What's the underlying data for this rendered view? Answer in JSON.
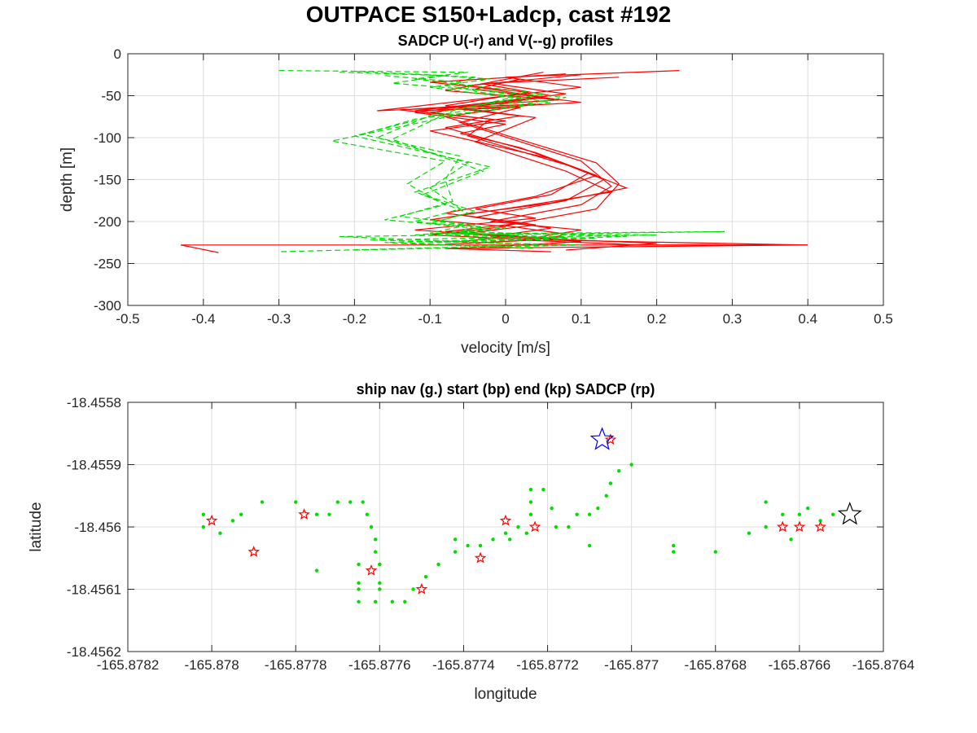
{
  "figure": {
    "title": "OUTPACE S150+Ladcp, cast #192"
  },
  "chart_data": [
    {
      "type": "line",
      "title": "SADCP U(-r) and V(--g) profiles",
      "xlabel": "velocity [m/s]",
      "ylabel": "depth [m]",
      "xlim": [
        -0.5,
        0.5
      ],
      "ylim": [
        -300,
        0
      ],
      "xticks": [
        -0.5,
        -0.4,
        -0.3,
        -0.2,
        -0.1,
        0,
        0.1,
        0.2,
        0.3,
        0.4,
        0.5
      ],
      "xtick_labels": [
        "-0.5",
        "-0.4",
        "-0.3",
        "-0.2",
        "-0.1",
        "0",
        "0.1",
        "0.2",
        "0.3",
        "0.4",
        "0.5"
      ],
      "yticks": [
        0,
        -50,
        -100,
        -150,
        -200,
        -250,
        -300
      ],
      "ytick_labels": [
        "0",
        "-50",
        "-100",
        "-150",
        "-200",
        "-250",
        "-300"
      ],
      "grid": true,
      "series": [
        {
          "color": "#ff0000",
          "linestyle": "solid",
          "profiles": [
            {
              "x": [
                0.23,
                0.0,
                0.1,
                -0.17,
                0.04,
                -0.08,
                0.12,
                0.15,
                0.12,
                0.0,
                0.08,
                0.05,
                0.4,
                -0.43,
                -0.38
              ],
              "y": [
                -20,
                -28,
                -40,
                -68,
                -60,
                -75,
                -130,
                -155,
                -185,
                -205,
                -215,
                -222,
                -228,
                -228,
                -237
              ]
            },
            {
              "x": [
                0.15,
                -0.02,
                0.08,
                -0.12,
                0.02,
                -0.06,
                0.1,
                0.14,
                0.1,
                -0.02,
                0.1,
                0.02,
                0.18,
                0.4,
                -0.08,
                0.06
              ],
              "y": [
                -28,
                -35,
                -48,
                -68,
                -64,
                -82,
                -128,
                -158,
                -180,
                -200,
                -210,
                -222,
                -228,
                -228,
                -232,
                -236
              ]
            },
            {
              "x": [
                0.1,
                -0.05,
                0.05,
                -0.1,
                0.0,
                -0.1,
                0.06,
                0.13,
                0.08,
                -0.04,
                0.06,
                -0.02,
                0.2,
                0.08
              ],
              "y": [
                -25,
                -38,
                -52,
                -70,
                -80,
                -92,
                -125,
                -150,
                -175,
                -195,
                -208,
                -218,
                -226,
                -234
              ]
            },
            {
              "x": [
                0.05,
                -0.08,
                0.07,
                -0.14,
                -0.02,
                -0.05,
                0.09,
                0.16,
                0.06,
                -0.06,
                0.04,
                -0.05,
                0.1,
                -0.02
              ],
              "y": [
                -22,
                -44,
                -55,
                -67,
                -78,
                -98,
                -135,
                -160,
                -178,
                -192,
                -204,
                -214,
                -224,
                -230
              ]
            },
            {
              "x": [
                0.08,
                -0.1,
                0.03,
                -0.08,
                0.02,
                -0.08,
                0.04,
                0.12,
                0.04,
                -0.08,
                0.02,
                -0.08,
                0.06,
                -0.04
              ],
              "y": [
                -24,
                -34,
                -46,
                -62,
                -74,
                -88,
                -118,
                -145,
                -170,
                -190,
                -202,
                -212,
                -220,
                -226
              ]
            },
            {
              "x": [
                0.02,
                -0.04,
                0.1,
                -0.06,
                0.04,
                -0.04,
                0.08,
                0.14,
                0.02,
                -0.1,
                0.0,
                -0.1,
                0.04,
                -0.08
              ],
              "y": [
                -30,
                -42,
                -58,
                -66,
                -76,
                -105,
                -140,
                -165,
                -182,
                -198,
                -206,
                -216,
                -222,
                -227
              ]
            },
            {
              "x": [
                -0.03,
                0.06,
                -0.12,
                0.0,
                -0.06,
                0.02,
                0.11,
                0.06,
                -0.04,
                0.04,
                -0.12,
                0.0,
                -0.06
              ],
              "y": [
                -36,
                -50,
                -70,
                -84,
                -95,
                -112,
                -142,
                -168,
                -185,
                -196,
                -210,
                -218,
                -224
              ]
            }
          ]
        },
        {
          "color": "#00dd00",
          "linestyle": "dashed",
          "profiles": [
            {
              "x": [
                -0.3,
                -0.05,
                -0.12,
                0.05,
                -0.09,
                -0.17,
                -0.05,
                -0.1,
                -0.06,
                -0.12,
                -0.02,
                -0.08,
                0.29,
                -0.22,
                0.05,
                -0.3
              ],
              "y": [
                -20,
                -22,
                -30,
                -48,
                -70,
                -100,
                -130,
                -160,
                -185,
                -200,
                -210,
                -215,
                -212,
                -218,
                -228,
                -236
              ]
            },
            {
              "x": [
                -0.22,
                -0.08,
                -0.15,
                0.08,
                -0.06,
                -0.23,
                -0.08,
                -0.13,
                -0.08,
                -0.16,
                -0.06,
                -0.1,
                0.2,
                -0.18,
                0.1,
                -0.2
              ],
              "y": [
                -22,
                -26,
                -35,
                -52,
                -72,
                -104,
                -128,
                -155,
                -180,
                -198,
                -206,
                -214,
                -216,
                -222,
                -228,
                -234
              ]
            },
            {
              "x": [
                -0.12,
                -0.02,
                -0.1,
                0.03,
                -0.1,
                -0.2,
                -0.02,
                -0.12,
                -0.04,
                -0.1,
                0.0,
                -0.12,
                0.12,
                -0.14,
                0.04
              ],
              "y": [
                -24,
                -30,
                -40,
                -55,
                -75,
                -98,
                -135,
                -165,
                -188,
                -202,
                -208,
                -216,
                -220,
                -226,
                -232
              ]
            },
            {
              "x": [
                -0.16,
                -0.06,
                -0.04,
                0.06,
                -0.12,
                -0.19,
                -0.06,
                -0.08,
                -0.07,
                -0.14,
                -0.04,
                -0.06,
                0.16,
                -0.1
              ],
              "y": [
                -26,
                -34,
                -45,
                -58,
                -78,
                -96,
                -122,
                -150,
                -176,
                -194,
                -204,
                -212,
                -218,
                -224
              ]
            },
            {
              "x": [
                -0.2,
                -0.04,
                -0.08,
                0.02,
                -0.07,
                -0.15,
                -0.03,
                -0.11,
                -0.05,
                -0.09,
                -0.03,
                -0.07,
                0.08,
                -0.16,
                0.0
              ],
              "y": [
                -21,
                -28,
                -38,
                -50,
                -68,
                -102,
                -140,
                -168,
                -190,
                -200,
                -207,
                -213,
                -219,
                -225,
                -230
              ]
            }
          ]
        }
      ]
    },
    {
      "type": "scatter",
      "title": "ship nav (g.) start (bp) end (kp) SADCP (rp)",
      "xlabel": "longitude",
      "ylabel": "latitude",
      "xlim": [
        -165.8782,
        -165.8764
      ],
      "ylim": [
        -18.4562,
        -18.4558
      ],
      "xticks": [
        -165.8782,
        -165.878,
        -165.8778,
        -165.8776,
        -165.8774,
        -165.8772,
        -165.877,
        -165.8768,
        -165.8766,
        -165.8764
      ],
      "xtick_labels": [
        "-165.8782",
        "-165.878",
        "-165.8778",
        "-165.8776",
        "-165.8774",
        "-165.8772",
        "-165.877",
        "-165.8768",
        "-165.8766",
        "-165.8764"
      ],
      "yticks": [
        -18.4558,
        -18.4559,
        -18.456,
        -18.4561,
        -18.4562
      ],
      "ytick_labels": [
        "-18.4558",
        "-18.4559",
        "-18.456",
        "-18.4561",
        "-18.4562"
      ],
      "grid": true,
      "series": [
        {
          "name": "ship nav",
          "marker": "dot",
          "color": "#00dd00",
          "x": [
            -165.87802,
            -165.87802,
            -165.87798,
            -165.87795,
            -165.87793,
            -165.87788,
            -165.8778,
            -165.87775,
            -165.87772,
            -165.8777,
            -165.87767,
            -165.87764,
            -165.87763,
            -165.87762,
            -165.87761,
            -165.87761,
            -165.8776,
            -165.8776,
            -165.8776,
            -165.8776,
            -165.87765,
            -165.87765,
            -165.87765,
            -165.87765,
            -165.87761,
            -165.87757,
            -165.87754,
            -165.87752,
            -165.87749,
            -165.87746,
            -165.87742,
            -165.87739,
            -165.87736,
            -165.87733,
            -165.8773,
            -165.87727,
            -165.87724,
            -165.87724,
            -165.87724,
            -165.87721,
            -165.87719,
            -165.87718,
            -165.87715,
            -165.87713,
            -165.8771,
            -165.87708,
            -165.87706,
            -165.87705,
            -165.87703,
            -165.877,
            -165.8769,
            -165.8768,
            -165.87672,
            -165.87668,
            -165.87664,
            -165.8766,
            -165.87658,
            -165.87655,
            -165.87652,
            -165.87662,
            -165.87668,
            -165.8769,
            -165.8771,
            -165.87742,
            -165.87775,
            -165.87725,
            -165.87729
          ],
          "y": [
            -18.45598,
            -18.456,
            -18.45601,
            -18.45599,
            -18.45598,
            -18.45596,
            -18.45596,
            -18.45598,
            -18.45598,
            -18.45596,
            -18.45596,
            -18.45596,
            -18.45598,
            -18.456,
            -18.45602,
            -18.45604,
            -18.45606,
            -18.45606,
            -18.45609,
            -18.4561,
            -18.4561,
            -18.45612,
            -18.45609,
            -18.45606,
            -18.45612,
            -18.45612,
            -18.45612,
            -18.4561,
            -18.45608,
            -18.45606,
            -18.45604,
            -18.45603,
            -18.45603,
            -18.45602,
            -18.45601,
            -18.456,
            -18.45598,
            -18.45596,
            -18.45594,
            -18.45594,
            -18.45597,
            -18.456,
            -18.456,
            -18.45598,
            -18.45598,
            -18.45597,
            -18.45595,
            -18.45593,
            -18.45591,
            -18.4559,
            -18.45604,
            -18.45604,
            -18.45601,
            -18.45596,
            -18.45598,
            -18.45598,
            -18.45597,
            -18.45599,
            -18.45598,
            -18.45602,
            -18.456,
            -18.45603,
            -18.45603,
            -18.45602,
            -18.45607,
            -18.45601,
            -18.45602
          ]
        },
        {
          "name": "SADCP",
          "marker": "star",
          "color": "#ff0000",
          "x": [
            -165.878,
            -165.8779,
            -165.87778,
            -165.87762,
            -165.8775,
            -165.87736,
            -165.8773,
            -165.87723,
            -165.87705,
            -165.87664,
            -165.8766,
            -165.87655
          ],
          "y": [
            -18.45599,
            -18.45604,
            -18.45598,
            -18.45607,
            -18.4561,
            -18.45605,
            -18.45599,
            -18.456,
            -18.45586,
            -18.456,
            -18.456,
            -18.456
          ]
        },
        {
          "name": "start",
          "marker": "star-large",
          "color": "#0000ff",
          "x": [
            -165.87707
          ],
          "y": [
            -18.45586
          ]
        },
        {
          "name": "end",
          "marker": "star-large",
          "color": "#000000",
          "x": [
            -165.87648
          ],
          "y": [
            -18.45598
          ]
        }
      ]
    }
  ]
}
